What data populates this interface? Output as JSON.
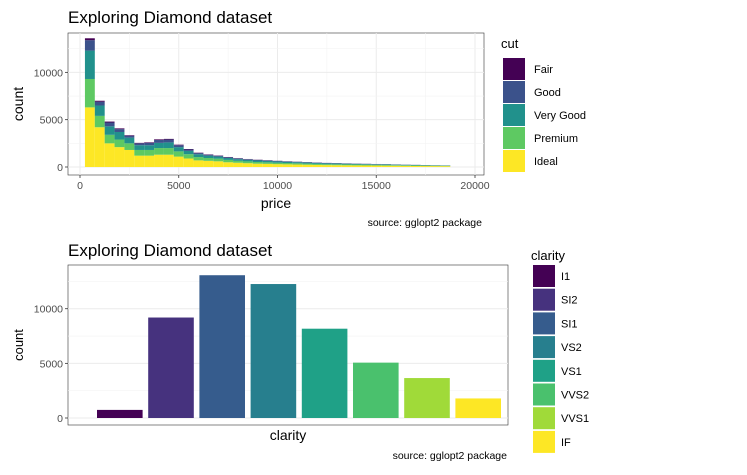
{
  "chart_data": [
    {
      "type": "bar",
      "subtype": "stacked-histogram",
      "title": "Exploring Diamond dataset",
      "xlabel": "price",
      "ylabel": "count",
      "caption": "source: gglopt2 package",
      "xlim": [
        0,
        20000
      ],
      "ylim": [
        0,
        14000
      ],
      "xticks": [
        "0",
        "5000",
        "10000",
        "15000",
        "20000"
      ],
      "yticks": [
        "0",
        "5000",
        "10000"
      ],
      "grid": true,
      "legend": {
        "title": "cut",
        "position": "right"
      },
      "bin_width": 500,
      "x": [
        500,
        1000,
        1500,
        2000,
        2500,
        3000,
        3500,
        4000,
        4500,
        5000,
        5500,
        6000,
        6500,
        7000,
        7500,
        8000,
        8500,
        9000,
        9500,
        10000,
        10500,
        11000,
        11500,
        12000,
        12500,
        13000,
        13500,
        14000,
        14500,
        15000,
        15500,
        16000,
        16500,
        17000,
        17500,
        18000,
        18500
      ],
      "series": [
        {
          "name": "Ideal",
          "color": "#FDE725",
          "values": [
            6300,
            4200,
            2500,
            2100,
            1800,
            1200,
            1200,
            1300,
            1300,
            1100,
            900,
            700,
            650,
            600,
            500,
            450,
            400,
            350,
            330,
            300,
            280,
            260,
            240,
            220,
            200,
            190,
            180,
            170,
            160,
            150,
            140,
            130,
            120,
            110,
            100,
            95,
            90
          ]
        },
        {
          "name": "Premium",
          "color": "#5EC962",
          "values": [
            3000,
            1200,
            900,
            800,
            700,
            600,
            600,
            700,
            700,
            550,
            450,
            350,
            300,
            280,
            250,
            200,
            190,
            180,
            160,
            150,
            140,
            130,
            120,
            110,
            100,
            95,
            90,
            85,
            80,
            75,
            70,
            65,
            60,
            55,
            50,
            45,
            40
          ]
        },
        {
          "name": "Very Good",
          "color": "#21918C",
          "values": [
            3000,
            1100,
            900,
            800,
            600,
            500,
            500,
            550,
            600,
            450,
            350,
            300,
            250,
            220,
            200,
            180,
            170,
            160,
            150,
            140,
            130,
            120,
            110,
            100,
            90,
            85,
            80,
            75,
            70,
            65,
            60,
            55,
            50,
            45,
            40,
            35,
            30
          ]
        },
        {
          "name": "Good",
          "color": "#3B528B",
          "values": [
            1100,
            400,
            400,
            300,
            200,
            200,
            250,
            300,
            300,
            200,
            150,
            120,
            100,
            90,
            80,
            70,
            65,
            60,
            55,
            50,
            45,
            40,
            38,
            35,
            32,
            30,
            28,
            26,
            24,
            22,
            20,
            18,
            16,
            14,
            12,
            10,
            8
          ]
        },
        {
          "name": "Fair",
          "color": "#440154",
          "values": [
            200,
            100,
            100,
            80,
            60,
            50,
            60,
            70,
            70,
            60,
            50,
            40,
            35,
            30,
            28,
            25,
            22,
            20,
            18,
            16,
            15,
            14,
            13,
            12,
            11,
            10,
            9,
            8,
            8,
            7,
            7,
            6,
            6,
            5,
            5,
            4,
            4
          ]
        }
      ]
    },
    {
      "type": "bar",
      "title": "Exploring Diamond dataset",
      "xlabel": "clarity",
      "ylabel": "count",
      "caption": "source: gglopt2 package",
      "ylim": [
        0,
        14000
      ],
      "yticks": [
        "0",
        "5000",
        "10000"
      ],
      "grid": true,
      "legend": {
        "title": "clarity",
        "position": "right"
      },
      "categories": [
        "I1",
        "SI2",
        "SI1",
        "VS2",
        "VS1",
        "VVS2",
        "VVS1",
        "IF"
      ],
      "values": [
        741,
        9194,
        13065,
        12258,
        8171,
        5066,
        3655,
        1790
      ],
      "colors": [
        "#440154",
        "#46327E",
        "#365C8D",
        "#277F8E",
        "#1FA187",
        "#4AC16D",
        "#A0DA39",
        "#FDE725"
      ]
    }
  ]
}
